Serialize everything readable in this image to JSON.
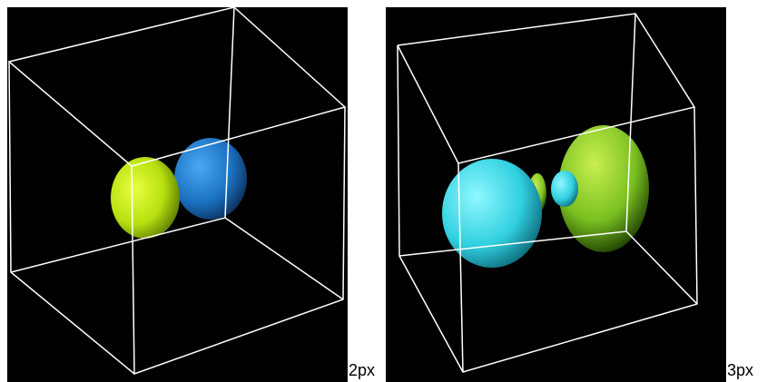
{
  "figures": [
    {
      "label": "2px"
    },
    {
      "label": "3px"
    }
  ]
}
